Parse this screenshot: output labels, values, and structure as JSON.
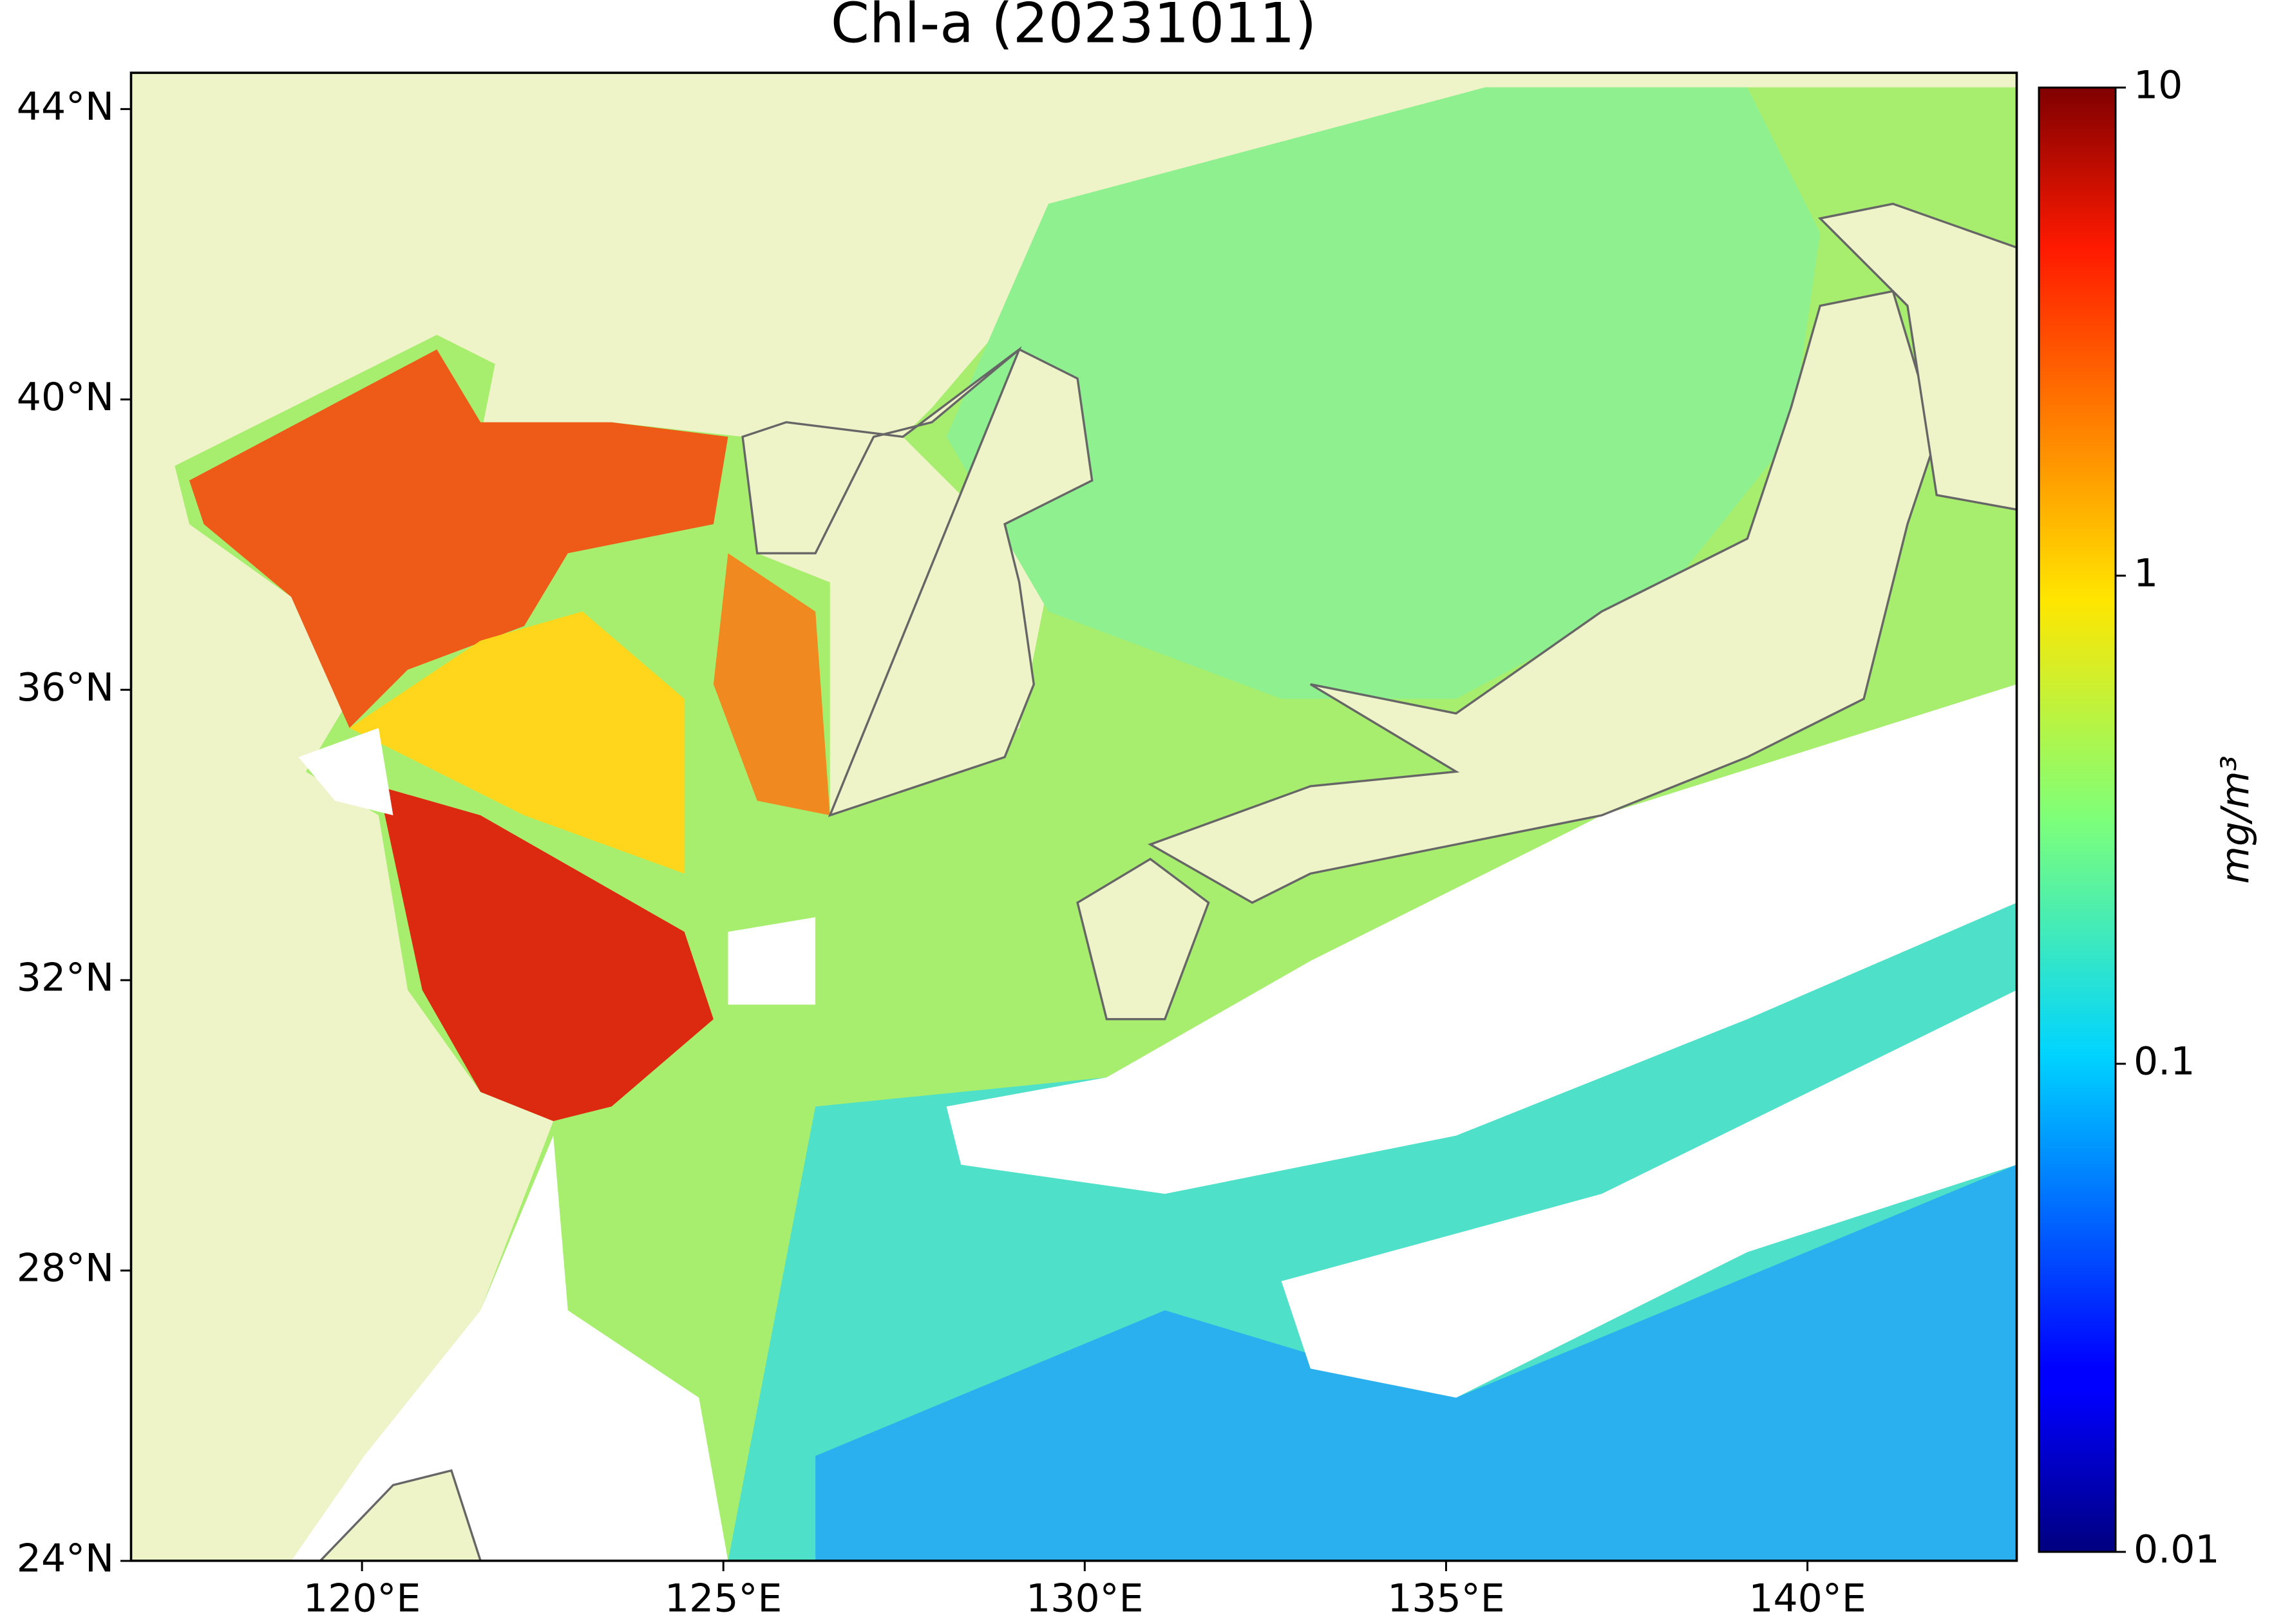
{
  "chart_data": {
    "type": "map",
    "title": "Chl-a (20231011)",
    "xlim": [
      116.8,
      142.9
    ],
    "ylim": [
      24,
      44.5
    ],
    "xticks": [
      {
        "value": 120,
        "label": "120°E"
      },
      {
        "value": 125,
        "label": "125°E"
      },
      {
        "value": 130,
        "label": "130°E"
      },
      {
        "value": 135,
        "label": "135°E"
      },
      {
        "value": 140,
        "label": "140°E"
      }
    ],
    "yticks": [
      {
        "value": 24,
        "label": "24°N"
      },
      {
        "value": 28,
        "label": "28°N"
      },
      {
        "value": 32,
        "label": "32°N"
      },
      {
        "value": 36,
        "label": "36°N"
      },
      {
        "value": 40,
        "label": "40°N"
      },
      {
        "value": 44,
        "label": "44°N"
      }
    ],
    "colorbar": {
      "label": "mg/m³",
      "scale": "log",
      "clim": [
        0.01,
        10
      ],
      "ticks": [
        0.01,
        0.1,
        1,
        10
      ],
      "colormap": "jet"
    }
  }
}
